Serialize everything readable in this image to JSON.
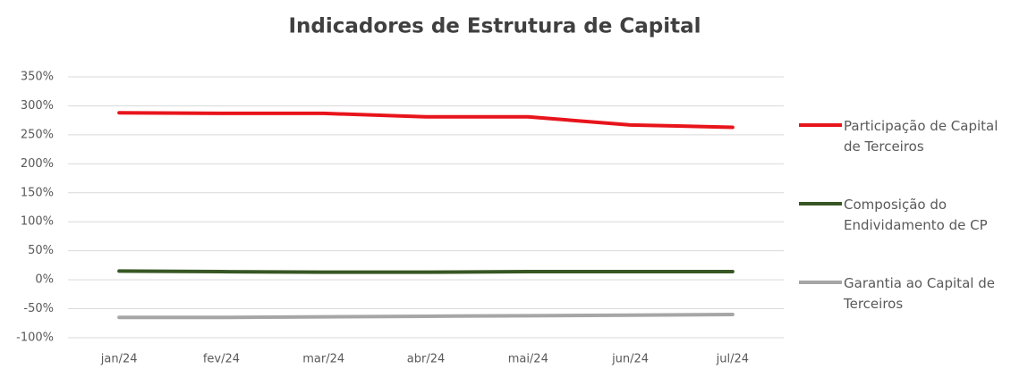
{
  "chart_data": {
    "type": "line",
    "title": "Indicadores de Estrutura de Capital",
    "categories": [
      "jan/24",
      "fev/24",
      "mar/24",
      "abr/24",
      "mai/24",
      "jun/24",
      "jul/24"
    ],
    "series": [
      {
        "name": "Participação de Capital de Terceiros",
        "color": "#e8141b",
        "values": [
          288,
          287,
          287,
          281,
          281,
          267,
          263
        ]
      },
      {
        "name": "Composição do Endividamento de CP",
        "color": "#375623",
        "values": [
          15,
          14,
          13,
          13,
          14,
          14,
          14
        ]
      },
      {
        "name": "Garantia ao Capital de Terceiros",
        "color": "#a6a6a6",
        "values": [
          -65,
          -65,
          -64,
          -63,
          -62,
          -61,
          -60
        ]
      }
    ],
    "ylim": [
      -100,
      350
    ],
    "yticks": [
      {
        "value": -100,
        "label": "-100%"
      },
      {
        "value": -50,
        "label": "-50%"
      },
      {
        "value": 0,
        "label": "0%"
      },
      {
        "value": 50,
        "label": "50%"
      },
      {
        "value": 100,
        "label": "100%"
      },
      {
        "value": 150,
        "label": "150%"
      },
      {
        "value": 200,
        "label": "200%"
      },
      {
        "value": 250,
        "label": "250%"
      },
      {
        "value": 300,
        "label": "300%"
      },
      {
        "value": 350,
        "label": "350%"
      }
    ],
    "grid": true,
    "legend": "right"
  }
}
